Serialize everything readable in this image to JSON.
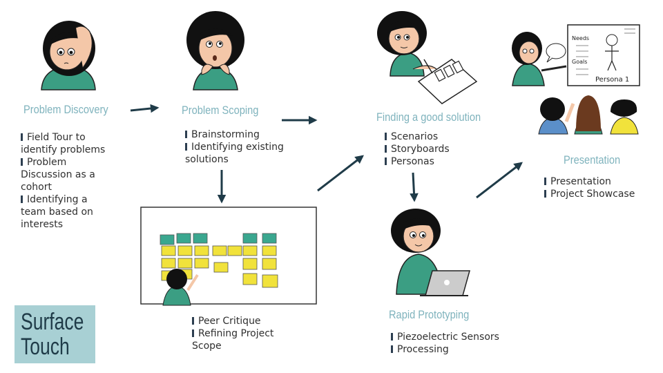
{
  "stages": {
    "discovery": {
      "title": "Problem Discovery",
      "items": [
        "Field Tour to identify problems",
        "Problem Discussion as a cohort",
        "Identifying a team based on interests"
      ]
    },
    "scoping": {
      "title": "Problem Scoping",
      "items": [
        "Brainstorming",
        "Identifying existing solutions"
      ]
    },
    "critique": {
      "items": [
        "Peer Critique",
        "Refining Project Scope"
      ]
    },
    "solution": {
      "title": "Finding a good solution",
      "items": [
        "Scenarios",
        "Storyboards",
        "Personas"
      ]
    },
    "prototyping": {
      "title": "Rapid Prototyping",
      "items": [
        "Piezoelectric Sensors",
        "Processing"
      ]
    },
    "presentation": {
      "title": "Presentation",
      "items": [
        "Presentation",
        "Project Showcase"
      ]
    }
  },
  "persona_sheet": {
    "needs": "Needs",
    "goals": "Goals",
    "name": "Persona 1"
  },
  "badge": {
    "line1": "Surface",
    "line2": "Touch"
  },
  "colors": {
    "title": "#7fb3bd",
    "arrow": "#1f3b48",
    "badge": "#a8d0d4",
    "shirt": "#3b9e83",
    "skin": "#f4c7a8",
    "hair": "#111111",
    "sticky_teal": "#3aa78f",
    "sticky_yellow": "#f1e23b"
  }
}
